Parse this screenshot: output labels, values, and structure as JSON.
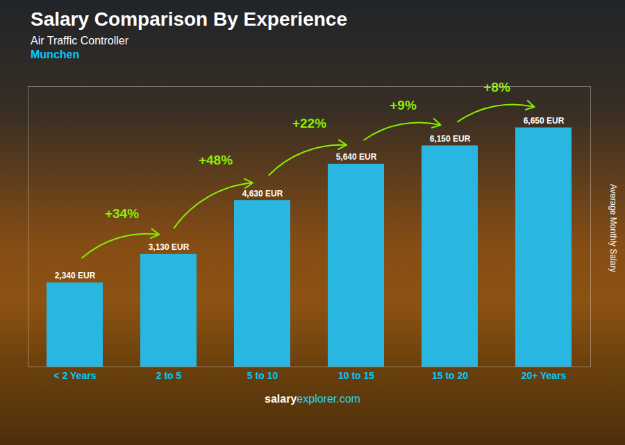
{
  "chart_data": {
    "type": "bar",
    "title": "Salary Comparison By Experience",
    "subtitle": [
      "Air Traffic Controller",
      "Munchen"
    ],
    "categories": [
      "< 2 Years",
      "2 to 5",
      "5 to 10",
      "10 to 15",
      "15 to 20",
      "20+ Years"
    ],
    "values": [
      2340,
      3130,
      4630,
      5640,
      6150,
      6650
    ],
    "value_labels": [
      "2,340 EUR",
      "3,130 EUR",
      "4,630 EUR",
      "5,640 EUR",
      "6,150 EUR",
      "6,650 EUR"
    ],
    "data_labels": true,
    "color": "#29b6e0",
    "ylim": [
      0,
      7800
    ],
    "tick_labels": "x",
    "grid": false,
    "ylabel": "Average Monthly Salary",
    "annotations": [
      {
        "text": "+34%",
        "from": "< 2 Years",
        "to": "2 to 5"
      },
      {
        "text": "+48%",
        "from": "2 to 5",
        "to": "5 to 10"
      },
      {
        "text": "+22%",
        "from": "5 to 10",
        "to": "10 to 15"
      },
      {
        "text": "+9%",
        "from": "10 to 15",
        "to": "15 to 20"
      },
      {
        "text": "+8%",
        "from": "15 to 20",
        "to": "20+ Years"
      }
    ],
    "caption": [
      "salary",
      "explorer.com"
    ]
  }
}
